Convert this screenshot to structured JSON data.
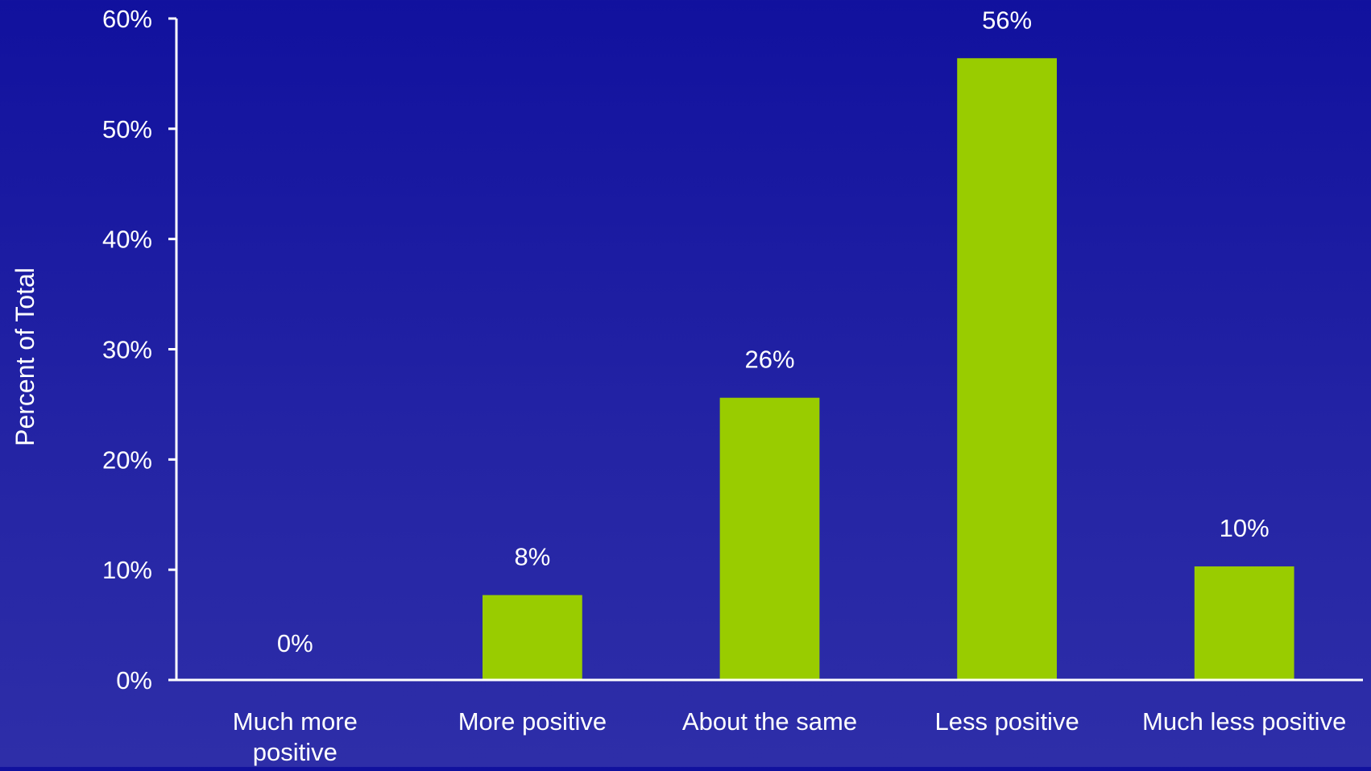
{
  "chart_data": {
    "type": "bar",
    "title": "",
    "xlabel": "",
    "ylabel": "Percent of Total",
    "categories": [
      [
        "Much more",
        "positive"
      ],
      [
        "More positive"
      ],
      [
        "About the same"
      ],
      [
        "Less positive"
      ],
      [
        "Much less positive"
      ]
    ],
    "values": [
      0,
      7.7,
      25.6,
      56.4,
      10.3
    ],
    "value_labels": [
      "0%",
      "8%",
      "26%",
      "56%",
      "10%"
    ],
    "ylim": [
      0,
      60
    ],
    "yticks": [
      0,
      10,
      20,
      30,
      40,
      50,
      60
    ],
    "ytick_labels": [
      "0%",
      "10%",
      "20%",
      "30%",
      "40%",
      "50%",
      "60%"
    ],
    "grid": false,
    "legend": "none",
    "colors": {
      "bar": "#99cc00",
      "axis": "#ffffff",
      "text": "#ffffff"
    }
  }
}
